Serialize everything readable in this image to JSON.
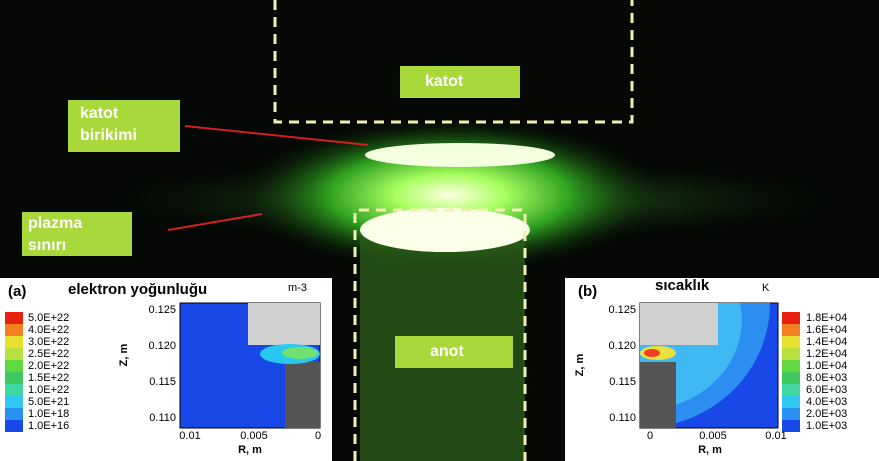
{
  "photo": {
    "cathode": "katot",
    "cathode_deposit": [
      "katot",
      "birikimi"
    ],
    "plasma_boundary": [
      "plazma",
      "sınırı"
    ],
    "anode": "anot"
  },
  "inset_a": {
    "panel": "(a)",
    "title": "elektron yoğunluğu",
    "unit": "m-3",
    "legend": [
      "5.0E+22",
      "4.0E+22",
      "3.0E+22",
      "2.5E+22",
      "2.0E+22",
      "1.5E+22",
      "1.0E+22",
      "5.0E+21",
      "1.0E+18",
      "1.0E+16"
    ],
    "y_label": "Z, m",
    "x_label": "R, m",
    "yticks": [
      "0.125",
      "0.120",
      "0.115",
      "0.110"
    ],
    "xticks": [
      "0.01",
      "0.005",
      "0"
    ]
  },
  "inset_b": {
    "panel": "(b)",
    "title": "sıcaklık",
    "unit": "K",
    "legend": [
      "1.8E+04",
      "1.6E+04",
      "1.4E+04",
      "1.2E+04",
      "1.0E+04",
      "8.0E+03",
      "6.0E+03",
      "4.0E+03",
      "2.0E+03",
      "1.0E+03"
    ],
    "y_label": "Z, m",
    "x_label": "R, m",
    "yticks": [
      "0.125",
      "0.120",
      "0.115",
      "0.110"
    ],
    "xticks": [
      "0",
      "0.005",
      "0.01"
    ]
  }
}
